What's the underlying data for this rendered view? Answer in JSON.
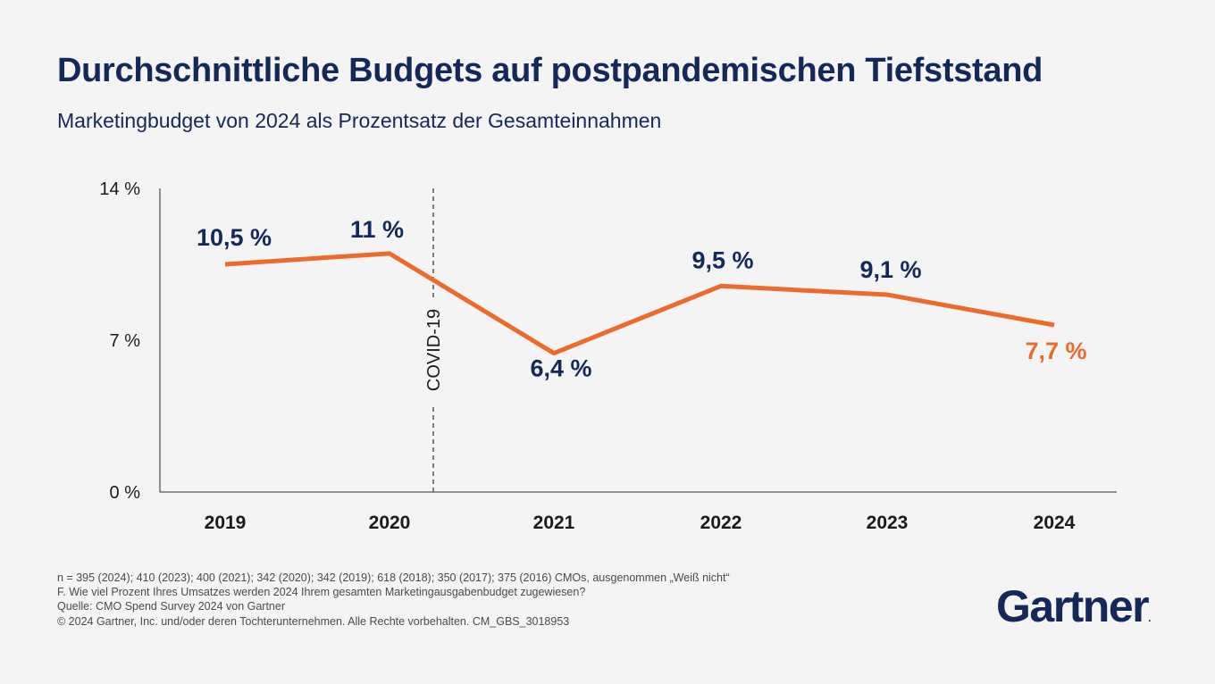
{
  "header": {
    "title": "Durchschnittliche Budgets auf postpandemischen Tiefststand",
    "subtitle": "Marketingbudget von 2024 als Prozentsatz der Gesamteinnahmen"
  },
  "chart_data": {
    "type": "line",
    "categories": [
      "2019",
      "2020",
      "2021",
      "2022",
      "2023",
      "2024"
    ],
    "values": [
      10.5,
      11,
      6.4,
      9.5,
      9.1,
      7.7
    ],
    "data_labels": [
      "10,5 %",
      "11 %",
      "6,4 %",
      "9,5 %",
      "9,1 %",
      "7,7 %"
    ],
    "ylim": [
      0,
      14
    ],
    "yticks": [
      0,
      7,
      14
    ],
    "ytick_labels": [
      "0 %",
      "7 %",
      "14 %"
    ],
    "annotation": {
      "label": "COVID-19",
      "between": [
        "2020",
        "2021"
      ],
      "style": "dashed-vertical-line"
    },
    "line_color": "#ee6a2b",
    "label_color": "#15285a",
    "highlight_color": "#ee6a2b",
    "highlight_index": 5,
    "grid": false
  },
  "footnotes": [
    "n = 395 (2024); 410 (2023); 400 (2021); 342 (2020); 342 (2019); 618 (2018); 350 (2017); 375 (2016) CMOs, ausgenommen „Weiß nicht“",
    "F. Wie viel Prozent Ihres Umsatzes werden 2024 Ihrem gesamten Marketingausgabenbudget zugewiesen?",
    "Quelle: CMO Spend Survey 2024 von Gartner",
    "© 2024 Gartner, Inc. und/oder deren Tochterunternehmen. Alle Rechte vorbehalten. CM_GBS_3018953"
  ],
  "logo": {
    "text": "Gartner",
    "mark": "."
  }
}
